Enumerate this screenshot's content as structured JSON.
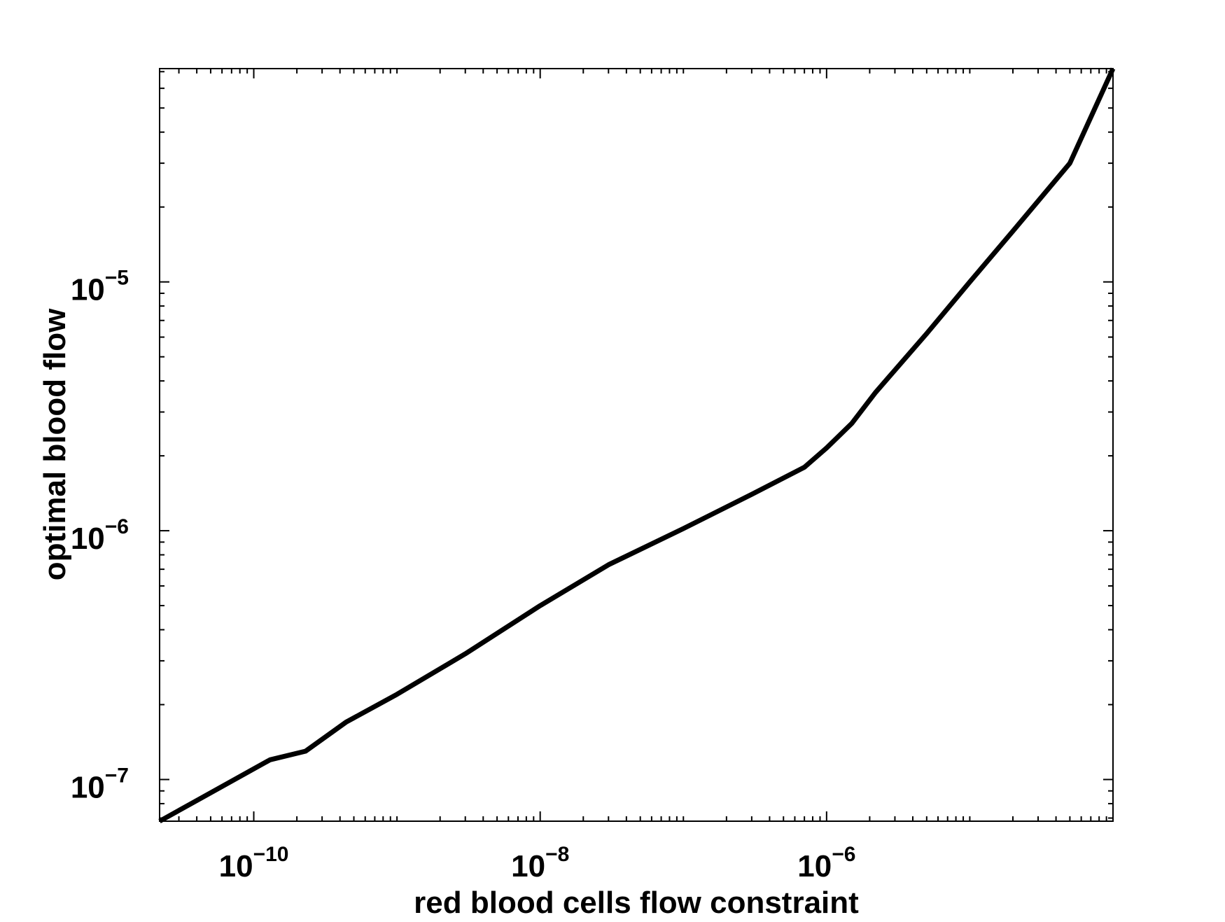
{
  "chart_data": {
    "type": "line",
    "title": "",
    "xlabel": "red blood cells flow constraint",
    "ylabel": "optimal blood flow",
    "xscale": "log",
    "yscale": "log",
    "xlim": [
      2.2e-11,
      0.0001
    ],
    "ylim": [
      6.8e-08,
      7.2e-05
    ],
    "xticks": [
      {
        "value": 1e-10,
        "base": "10",
        "exp": "−10"
      },
      {
        "value": 1e-08,
        "base": "10",
        "exp": "−8"
      },
      {
        "value": 1e-06,
        "base": "10",
        "exp": "−6"
      }
    ],
    "yticks": [
      {
        "value": 1e-07,
        "base": "10",
        "exp": "−7"
      },
      {
        "value": 1e-06,
        "base": "10",
        "exp": "−6"
      },
      {
        "value": 1e-05,
        "base": "10",
        "exp": "−5"
      }
    ],
    "grid": false,
    "legend": "none",
    "line_color": "#000000",
    "series": [
      {
        "x": [
          2.2e-11,
          1.3e-10,
          2.3e-10,
          4.4e-10,
          1e-09,
          3e-09,
          1e-08,
          3e-08,
          1e-07,
          3e-07,
          7e-07,
          1e-06,
          1.5e-06,
          2.2e-06,
          5e-06,
          1e-05,
          2e-05,
          5e-05,
          0.0001
        ],
        "y": [
          6.8e-08,
          1.2e-07,
          1.3e-07,
          1.7e-07,
          2.2e-07,
          3.2e-07,
          5e-07,
          7.3e-07,
          1.02e-06,
          1.4e-06,
          1.8e-06,
          2.15e-06,
          2.7e-06,
          3.6e-06,
          6.2e-06,
          1e-05,
          1.6e-05,
          3e-05,
          7.2e-05
        ]
      }
    ]
  }
}
